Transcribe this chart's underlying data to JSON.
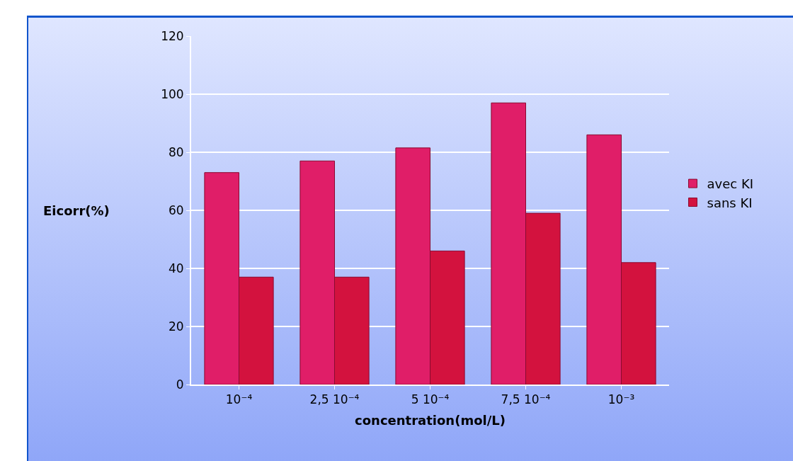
{
  "chart_data": {
    "type": "bar",
    "xlabel": "concentration(mol/L)",
    "ylabel": "Eicorr(%)",
    "categories": [
      "10⁻⁴",
      "2,5 10⁻⁴",
      "5 10⁻⁴",
      "7,5 10⁻⁴",
      "10⁻³"
    ],
    "series": [
      {
        "name": "avec KI",
        "color": "#e01e68",
        "values": [
          73,
          77,
          81.5,
          97,
          86
        ]
      },
      {
        "name": "sans KI",
        "color": "#d3123e",
        "values": [
          37,
          37,
          46,
          59,
          42
        ]
      }
    ],
    "ylim": [
      0,
      120
    ],
    "yticks": [
      0,
      20,
      40,
      60,
      80,
      100,
      120
    ],
    "grid": "y",
    "legend": "right"
  }
}
